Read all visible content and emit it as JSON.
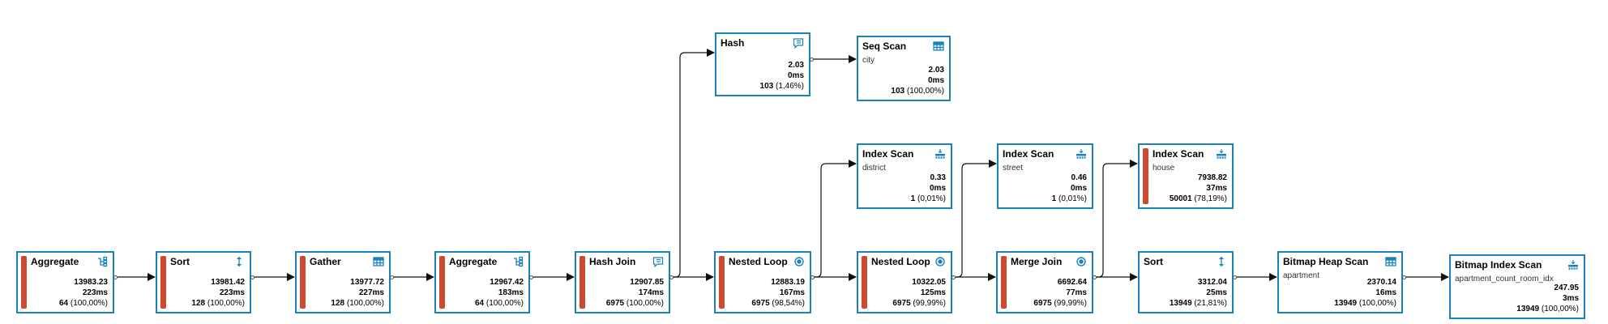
{
  "nodes": [
    {
      "id": "n1",
      "title": "Aggregate",
      "subtitle": "",
      "cost": "13983.23",
      "time": "223ms",
      "rows": "64",
      "pct": "(100,00%)",
      "icon": "aggregate-icon",
      "bar": true
    },
    {
      "id": "n2",
      "title": "Sort",
      "subtitle": "",
      "cost": "13981.42",
      "time": "223ms",
      "rows": "128",
      "pct": "(100,00%)",
      "icon": "sort-icon",
      "bar": true
    },
    {
      "id": "n3",
      "title": "Gather",
      "subtitle": "",
      "cost": "13977.72",
      "time": "227ms",
      "rows": "128",
      "pct": "(100,00%)",
      "icon": "table-icon",
      "bar": true
    },
    {
      "id": "n4",
      "title": "Aggregate",
      "subtitle": "",
      "cost": "12967.42",
      "time": "183ms",
      "rows": "64",
      "pct": "(100,00%)",
      "icon": "aggregate-icon",
      "bar": true
    },
    {
      "id": "n5",
      "title": "Hash Join",
      "subtitle": "",
      "cost": "12907.85",
      "time": "174ms",
      "rows": "6975",
      "pct": "(100,00%)",
      "icon": "hash-icon",
      "bar": true
    },
    {
      "id": "n6",
      "title": "Hash",
      "subtitle": "",
      "cost": "2.03",
      "time": "0ms",
      "rows": "103",
      "pct": "(1,46%)",
      "icon": "hash-icon",
      "bar": false
    },
    {
      "id": "n7",
      "title": "Seq Scan",
      "subtitle": "city",
      "cost": "2.03",
      "time": "0ms",
      "rows": "103",
      "pct": "(100,00%)",
      "icon": "table-icon",
      "bar": false
    },
    {
      "id": "n8",
      "title": "Nested Loop",
      "subtitle": "",
      "cost": "12883.19",
      "time": "167ms",
      "rows": "6975",
      "pct": "(98,54%)",
      "icon": "loop-icon",
      "bar": true
    },
    {
      "id": "n9",
      "title": "Index Scan",
      "subtitle": "district",
      "cost": "0.33",
      "time": "0ms",
      "rows": "1",
      "pct": "(0,01%)",
      "icon": "index-icon",
      "bar": false
    },
    {
      "id": "n10",
      "title": "Nested Loop",
      "subtitle": "",
      "cost": "10322.05",
      "time": "125ms",
      "rows": "6975",
      "pct": "(99,99%)",
      "icon": "loop-icon",
      "bar": true
    },
    {
      "id": "n11",
      "title": "Index Scan",
      "subtitle": "street",
      "cost": "0.46",
      "time": "0ms",
      "rows": "1",
      "pct": "(0,01%)",
      "icon": "index-icon",
      "bar": false
    },
    {
      "id": "n12",
      "title": "Merge Join",
      "subtitle": "",
      "cost": "6692.64",
      "time": "77ms",
      "rows": "6975",
      "pct": "(99,99%)",
      "icon": "loop-icon",
      "bar": true
    },
    {
      "id": "n13",
      "title": "Index Scan",
      "subtitle": "house",
      "cost": "7938.82",
      "time": "37ms",
      "rows": "50001",
      "pct": "(78,19%)",
      "icon": "index-icon",
      "bar": true
    },
    {
      "id": "n14",
      "title": "Sort",
      "subtitle": "",
      "cost": "3312.04",
      "time": "25ms",
      "rows": "13949",
      "pct": "(21,81%)",
      "icon": "sort-icon",
      "bar": false
    },
    {
      "id": "n15",
      "title": "Bitmap Heap Scan",
      "subtitle": "apartment",
      "cost": "2370.14",
      "time": "16ms",
      "rows": "13949",
      "pct": "(100,00%)",
      "icon": "table-icon",
      "bar": false
    },
    {
      "id": "n16",
      "title": "Bitmap Index Scan",
      "subtitle": "apartment_count_room_idx",
      "cost": "247.95",
      "time": "3ms",
      "rows": "13949",
      "pct": "(100,00%)",
      "icon": "index-icon",
      "bar": false
    }
  ],
  "edges": [
    [
      "n1",
      "n2"
    ],
    [
      "n2",
      "n3"
    ],
    [
      "n3",
      "n4"
    ],
    [
      "n4",
      "n5"
    ],
    [
      "n5",
      "n6"
    ],
    [
      "n6",
      "n7"
    ],
    [
      "n5",
      "n8"
    ],
    [
      "n8",
      "n9"
    ],
    [
      "n8",
      "n10"
    ],
    [
      "n10",
      "n11"
    ],
    [
      "n10",
      "n12"
    ],
    [
      "n12",
      "n13"
    ],
    [
      "n12",
      "n14"
    ],
    [
      "n14",
      "n15"
    ],
    [
      "n15",
      "n16"
    ]
  ],
  "colors": {
    "border": "#1a82b8",
    "bar": "#cc4a30",
    "icon": "#1a82b8",
    "edge": "#111111"
  }
}
